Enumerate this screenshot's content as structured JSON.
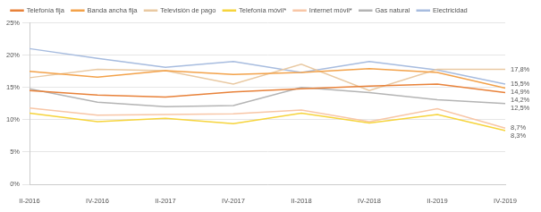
{
  "chart_data": {
    "type": "line",
    "categories": [
      "II-2016",
      "IV-2016",
      "II-2017",
      "IV-2017",
      "II-2018",
      "IV-2018",
      "II-2019",
      "IV-2019"
    ],
    "series": [
      {
        "name": "Telefonía fija",
        "color": "#e8823a",
        "values": [
          14.5,
          13.8,
          13.5,
          14.3,
          14.8,
          15.2,
          15.5,
          14.2
        ],
        "value_labels": [
          null,
          null,
          null,
          null,
          null,
          null,
          null,
          "14,2%"
        ]
      },
      {
        "name": "Banda ancha fija",
        "color": "#f3a24a",
        "values": [
          17.5,
          16.6,
          17.6,
          17.0,
          17.3,
          17.9,
          17.3,
          14.9
        ],
        "value_labels": [
          null,
          null,
          null,
          null,
          null,
          null,
          null,
          "14,9%"
        ]
      },
      {
        "name": "Televisión de pago",
        "color": "#e9c9a2",
        "values": [
          16.5,
          17.8,
          17.6,
          15.5,
          18.6,
          14.5,
          17.8,
          17.8
        ],
        "value_labels": [
          null,
          null,
          null,
          null,
          null,
          null,
          null,
          "17,8%"
        ]
      },
      {
        "name": "Telefonía móvil*",
        "color": "#f6d43c",
        "values": [
          11.0,
          9.7,
          10.2,
          9.4,
          11.0,
          9.5,
          10.8,
          8.3
        ],
        "value_labels": [
          null,
          null,
          null,
          null,
          null,
          null,
          null,
          "8,3%"
        ]
      },
      {
        "name": "Internet móvil*",
        "color": "#f8c6a6",
        "values": [
          11.8,
          10.7,
          10.8,
          10.9,
          11.5,
          9.7,
          11.7,
          8.7
        ],
        "value_labels": [
          null,
          null,
          null,
          null,
          null,
          null,
          null,
          "8,7%"
        ]
      },
      {
        "name": "Gas natural",
        "color": "#b4b4b4",
        "values": [
          14.8,
          12.7,
          12.0,
          12.2,
          15.0,
          14.2,
          13.1,
          12.5
        ],
        "value_labels": [
          null,
          null,
          null,
          null,
          null,
          null,
          null,
          "12,5%"
        ]
      },
      {
        "name": "Electricidad",
        "color": "#a7bcdf",
        "values": [
          21.0,
          19.5,
          18.1,
          19.0,
          17.3,
          19.0,
          17.7,
          15.5
        ],
        "value_labels": [
          null,
          null,
          null,
          null,
          null,
          null,
          null,
          "15,5%"
        ]
      }
    ],
    "ylim": [
      0,
      25
    ],
    "yticks": [
      {
        "value": 0,
        "label": "0%"
      },
      {
        "value": 5,
        "label": "5%"
      },
      {
        "value": 10,
        "label": "10%"
      },
      {
        "value": 15,
        "label": "15%"
      },
      {
        "value": 20,
        "label": "20%"
      },
      {
        "value": 25,
        "label": "25%"
      }
    ],
    "grid": true,
    "legend": "top"
  }
}
